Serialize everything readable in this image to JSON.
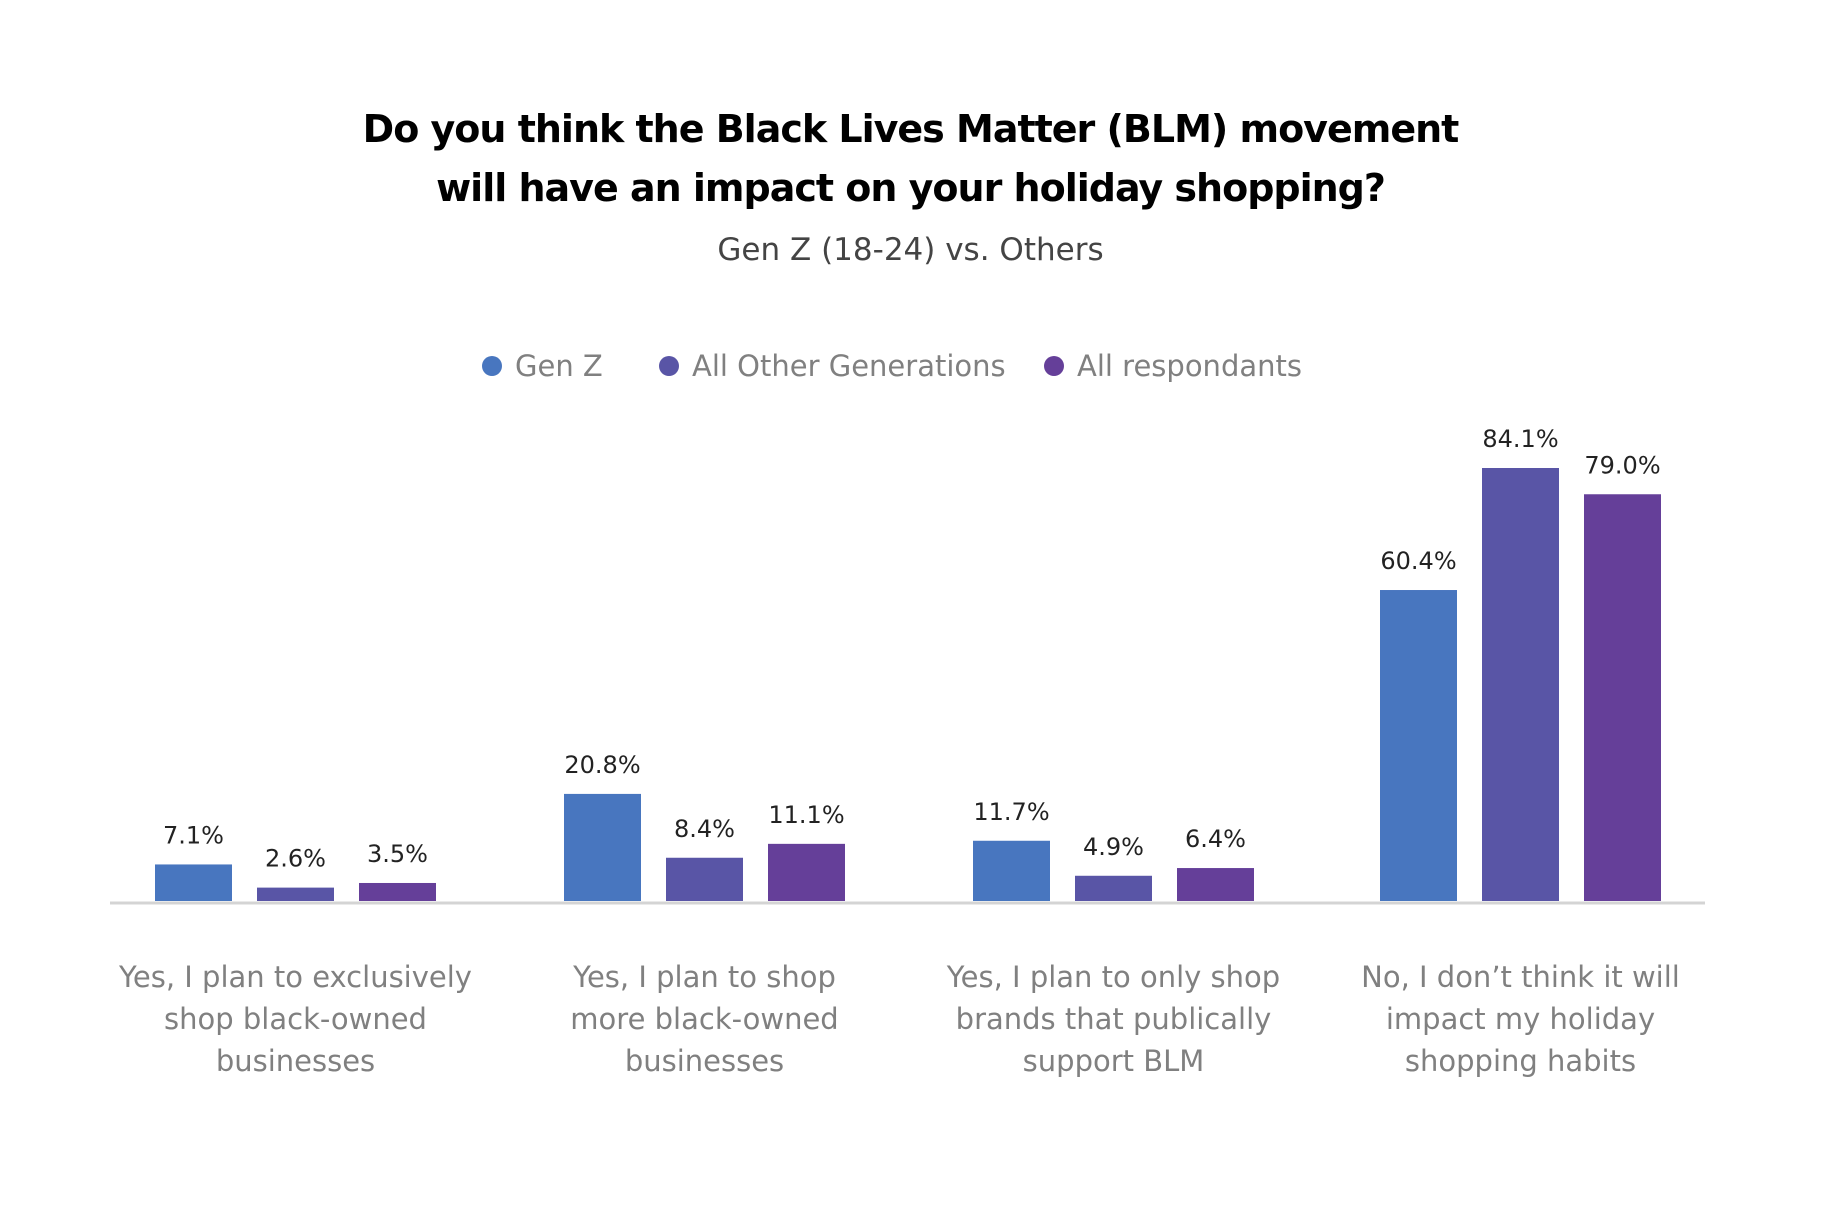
{
  "chart_data": {
    "type": "bar",
    "title": [
      "Do you think the Black Lives Matter (BLM) movement",
      "will have an impact on your holiday shopping?"
    ],
    "subtitle": "Gen Z (18-24) vs. Others",
    "categories": [
      [
        "Yes, I plan to exclusively",
        "shop black-owned",
        "businesses"
      ],
      [
        "Yes, I plan to shop",
        "more black-owned",
        "businesses"
      ],
      [
        "Yes, I plan to only shop",
        "brands that publically",
        "support BLM"
      ],
      [
        "No, I don’t think it will",
        "impact my holiday",
        "shopping habits"
      ]
    ],
    "series": [
      {
        "name": "Gen Z",
        "color": "#4876bf",
        "values": [
          7.1,
          20.8,
          11.7,
          60.4
        ],
        "labels": [
          "7.1%",
          "20.8%",
          "11.7%",
          "60.4%"
        ]
      },
      {
        "name": "All Other Generations",
        "color": "#5955a6",
        "values": [
          2.6,
          8.4,
          4.9,
          84.1
        ],
        "labels": [
          "2.6%",
          "8.4%",
          "4.9%",
          "84.1%"
        ]
      },
      {
        "name": "All respondants",
        "color": "#653f99",
        "values": [
          3.5,
          11.1,
          6.4,
          79.0
        ],
        "labels": [
          "3.5%",
          "11.1%",
          "6.4%",
          "79.0%"
        ]
      }
    ],
    "ylim": [
      0,
      84.1
    ],
    "grid": false,
    "legend_position": "top-center"
  }
}
